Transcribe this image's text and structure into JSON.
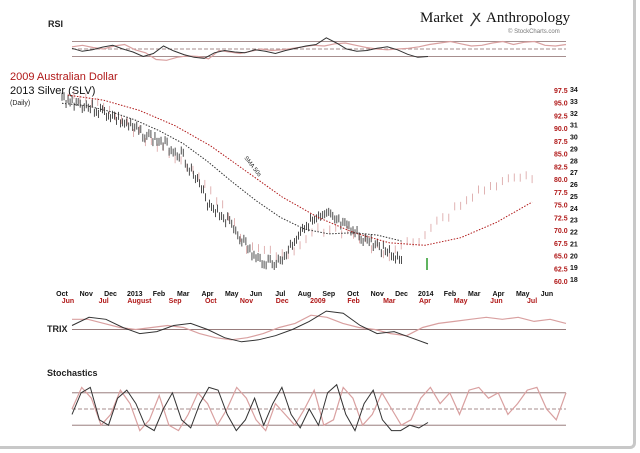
{
  "brand": {
    "left": "Market",
    "right": "Anthropology",
    "source": "© StockCharts.com"
  },
  "chart_data": {
    "type": "line",
    "title_red": "2009 Australian Dollar",
    "title_black": "2013  Silver (SLV)",
    "subtitle": "(Daily)",
    "sma_label": "SMA 50s",
    "colors": {
      "red": "#b01818",
      "pink": "#d9a0a0",
      "black": "#222222",
      "grid": "#8a6a6a"
    },
    "x_black_ticks": [
      "Oct",
      "Nov",
      "Dec",
      "2013",
      "Feb",
      "Mar",
      "Apr",
      "May",
      "Jun",
      "Jul",
      "Aug",
      "Sep",
      "Oct",
      "Nov",
      "Dec",
      "2014",
      "Feb",
      "Mar",
      "Apr",
      "May",
      "Jun"
    ],
    "x_red_ticks": [
      "Jun",
      "Jul",
      "August",
      "Sep",
      "Oct",
      "Nov",
      "Dec",
      "2009",
      "Feb",
      "Mar",
      "Apr",
      "May",
      "Jun",
      "Jul"
    ],
    "y_red_ticks": [
      "97.5",
      "95.0",
      "92.5",
      "90.0",
      "87.5",
      "85.0",
      "82.5",
      "80.0",
      "77.5",
      "75.0",
      "72.5",
      "70.0",
      "67.5",
      "65.0",
      "62.5",
      "60.0"
    ],
    "y_black_ticks": [
      "34",
      "33",
      "32",
      "31",
      "30",
      "29",
      "28",
      "27",
      "26",
      "25",
      "24",
      "23",
      "22",
      "21",
      "20",
      "19",
      "18"
    ],
    "series": [
      {
        "name": "2013  Silver (SLV)",
        "axis": "right-black",
        "x": [
          "2012-10",
          "2012-11",
          "2012-12",
          "2013-01",
          "2013-02",
          "2013-03",
          "2013-04",
          "2013-05",
          "2013-06",
          "2013-07",
          "2013-08",
          "2013-09",
          "2013-10",
          "2013-11",
          "2013-12"
        ],
        "values": [
          33.2,
          32.6,
          31.8,
          30.6,
          29.6,
          28.4,
          24.5,
          22.6,
          19.6,
          19.4,
          22.6,
          23.3,
          21.9,
          20.8,
          19.6
        ]
      },
      {
        "name": "2009 Australian Dollar",
        "axis": "right-red",
        "x": [
          "2008-06",
          "2008-07",
          "2008-08",
          "2008-09",
          "2008-10",
          "2008-11",
          "2008-12",
          "2009-01",
          "2009-02",
          "2009-03",
          "2009-04",
          "2009-05",
          "2009-06",
          "2009-07"
        ],
        "values": [
          96,
          94.5,
          89,
          84,
          78,
          67,
          65,
          70,
          69,
          65,
          69,
          75,
          79,
          80
        ]
      }
    ],
    "sma_black": [
      32.8,
      32.6,
      32.1,
      31.4,
      30.5,
      29.4,
      27.9,
      26.2,
      24.6,
      23.2,
      22.2,
      21.8,
      21.9,
      21.7,
      21.2
    ],
    "sma_red": [
      96.5,
      95.5,
      93.5,
      90.5,
      86.5,
      81.5,
      76.5,
      72.5,
      69.5,
      67.5,
      67,
      68.5,
      71.5,
      75.5
    ],
    "indicators": {
      "rsi": {
        "label": "RSI",
        "levels": [
          30,
          50,
          70
        ],
        "black": [
          52,
          44,
          48,
          55,
          60,
          50,
          42,
          30,
          38,
          58,
          45,
          35,
          28,
          25,
          40,
          46,
          42,
          40,
          48,
          44,
          38,
          46,
          52,
          58,
          62,
          80,
          66,
          50,
          44,
          46,
          52,
          56,
          48,
          36,
          28,
          30
        ],
        "red": [
          56,
          60,
          54,
          50,
          58,
          62,
          48,
          40,
          22,
          20,
          28,
          32,
          30,
          24,
          46,
          42,
          38,
          44,
          50,
          46,
          48,
          52,
          56,
          60,
          58,
          64,
          66,
          60,
          54,
          50,
          48,
          50,
          52,
          56,
          62,
          66,
          70,
          64,
          58,
          60,
          66,
          70,
          62,
          68,
          70,
          60,
          58,
          62
        ]
      },
      "trix": {
        "label": "TRIX",
        "levels": [
          0
        ],
        "black": [
          0.2,
          0.6,
          0.5,
          0.1,
          -0.2,
          -0.1,
          0.2,
          0.3,
          0.0,
          -0.4,
          -0.6,
          -0.5,
          -0.3,
          0.0,
          0.4,
          0.9,
          0.8,
          0.2,
          -0.2,
          -0.1,
          -0.4,
          -0.7
        ],
        "red": [
          0.5,
          0.5,
          0.3,
          0.1,
          0.0,
          0.1,
          0.2,
          0.1,
          -0.2,
          -0.4,
          -0.5,
          -0.4,
          -0.2,
          0.1,
          0.3,
          0.7,
          0.6,
          0.3,
          0.1,
          0.0,
          -0.2,
          -0.3,
          0.1,
          0.3,
          0.4,
          0.5,
          0.6,
          0.5,
          0.6,
          0.4,
          0.5,
          0.3
        ]
      },
      "stochastics": {
        "label": "Stochastics",
        "levels": [
          20,
          50,
          80
        ],
        "black": [
          40,
          80,
          90,
          30,
          20,
          70,
          85,
          60,
          20,
          10,
          50,
          80,
          30,
          15,
          60,
          90,
          85,
          40,
          10,
          30,
          70,
          20,
          60,
          90,
          40,
          15,
          50,
          20,
          80,
          95,
          40,
          10,
          60,
          85,
          30,
          10,
          10,
          20,
          15,
          25
        ],
        "red": [
          50,
          90,
          70,
          20,
          40,
          85,
          60,
          10,
          30,
          75,
          20,
          10,
          40,
          80,
          60,
          20,
          50,
          90,
          70,
          30,
          10,
          60,
          40,
          20,
          50,
          85,
          20,
          30,
          90,
          70,
          20,
          40,
          80,
          50,
          20,
          30,
          70,
          90,
          60,
          80,
          40,
          85,
          90,
          70,
          80,
          40,
          60,
          85,
          90,
          50,
          30,
          80
        ]
      }
    }
  }
}
